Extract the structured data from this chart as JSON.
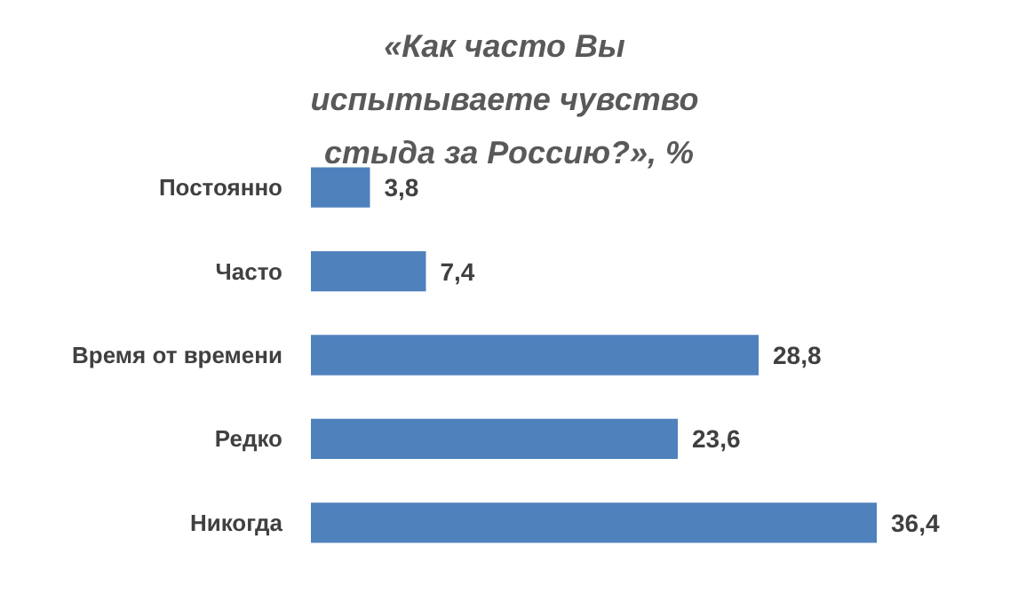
{
  "chart_data": {
    "type": "bar",
    "orientation": "horizontal",
    "title": "«Как часто Вы испытываете чувство стыда за Россию?», %",
    "categories": [
      "Постоянно",
      "Часто",
      "Время от времени",
      "Редко",
      "Никогда"
    ],
    "values": [
      3.8,
      7.4,
      28.8,
      23.6,
      36.4
    ],
    "value_labels": [
      "3,8",
      "7,4",
      "28,8",
      "23,6",
      "36,4"
    ],
    "color": "#4f81bd",
    "tick_labels": "y"
  }
}
